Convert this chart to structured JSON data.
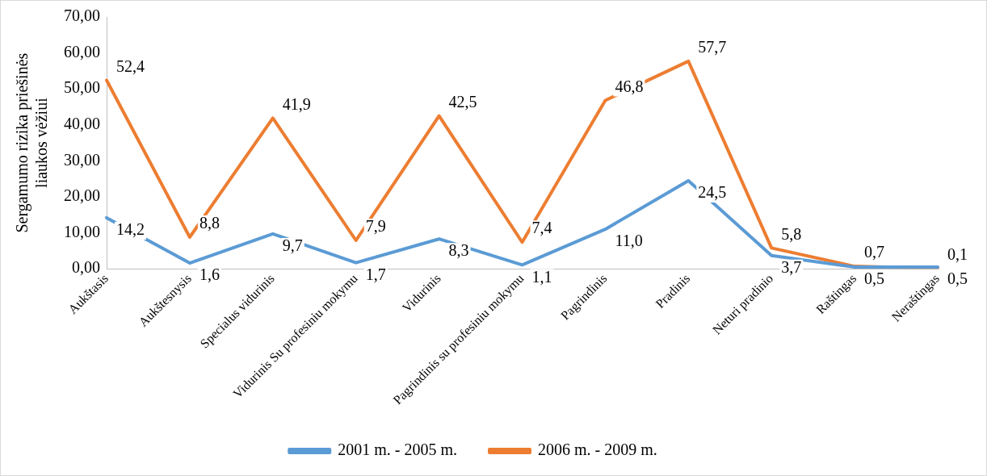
{
  "chart_data": {
    "type": "line",
    "ylabel": "Sergamumo rizika priešinės liaukos vėžiui",
    "categories": [
      "Aukštasis",
      "Aukštesnysis",
      "Specialus vidurinis",
      "Vidurinis Su profesiniu mokymu",
      "Vidurinis",
      "Pagrindinis su profesiniu mokymu",
      "Pagrindinis",
      "Pradinis",
      "Neturi pradinio",
      "Raštingas",
      "Neraštingas"
    ],
    "series": [
      {
        "name": "2001 m. - 2005 m.",
        "color": "#5b9bd5",
        "values": [
          14.2,
          1.6,
          9.7,
          1.7,
          8.3,
          1.1,
          11.0,
          24.5,
          3.7,
          0.5,
          0.5
        ],
        "value_labels": [
          "14,2",
          "1,6",
          "9,7",
          "1,7",
          "8,3",
          "1,1",
          "11,0",
          "24,5",
          "3,7",
          "0,5",
          "0,5"
        ]
      },
      {
        "name": "2006 m. - 2009 m.",
        "color": "#ed7d31",
        "values": [
          52.4,
          8.8,
          41.9,
          7.9,
          42.5,
          7.4,
          46.8,
          57.7,
          5.8,
          0.7,
          0.1
        ],
        "value_labels": [
          "52,4",
          "8,8",
          "41,9",
          "7,9",
          "42,5",
          "7,4",
          "46,8",
          "57,7",
          "5,8",
          "0,7",
          "0,1"
        ]
      }
    ],
    "ylim": [
      0,
      70
    ],
    "yticks": [
      {
        "value": 0,
        "label": "0,00"
      },
      {
        "value": 10,
        "label": "10,00"
      },
      {
        "value": 20,
        "label": "20,00"
      },
      {
        "value": 30,
        "label": "30,00"
      },
      {
        "value": 40,
        "label": "40,00"
      },
      {
        "value": 50,
        "label": "50,00"
      },
      {
        "value": 60,
        "label": "60,00"
      },
      {
        "value": 70,
        "label": "70,00"
      }
    ],
    "grid": false,
    "legend": "bottom",
    "marker": "none",
    "line_style": "solid"
  }
}
